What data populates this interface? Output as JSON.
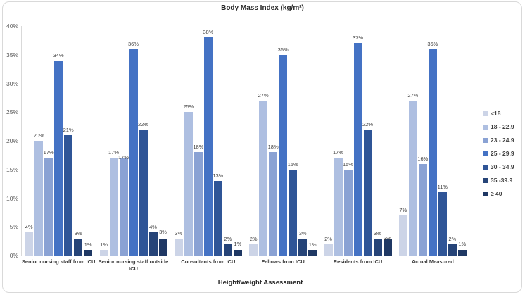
{
  "chart": {
    "title": "Body Mass Index (kg/m²)",
    "x_axis_title": "Height/weight Assessment"
  },
  "chart_data": {
    "type": "bar",
    "title": "Body Mass Index (kg/m²)",
    "xlabel": "Height/weight Assessment",
    "ylabel": "",
    "ylim": [
      0,
      40
    ],
    "y_tick_step": 5,
    "y_ticks": [
      "0%",
      "5%",
      "10%",
      "15%",
      "20%",
      "25%",
      "30%",
      "35%",
      "40%"
    ],
    "grid": false,
    "legend_position": "right",
    "data_labels": "percent",
    "categories": [
      "Senior nursing staff from ICU",
      "Senior nursing staff outside ICU",
      "Consultants from ICU",
      "Fellows from ICU",
      "Residents from ICU",
      "Actual Measured"
    ],
    "series": [
      {
        "name": "<18",
        "color": "#ccd4e7",
        "values": [
          4,
          1,
          3,
          2,
          2,
          7
        ]
      },
      {
        "name": "18 - 22.9",
        "color": "#aebfe1",
        "values": [
          20,
          17,
          25,
          27,
          17,
          27
        ]
      },
      {
        "name": "23 - 24.9",
        "color": "#8aa2d4",
        "values": [
          17,
          17,
          18,
          18,
          15,
          16
        ]
      },
      {
        "name": "25 - 29.9",
        "color": "#4472c4",
        "values": [
          34,
          36,
          38,
          35,
          37,
          36
        ]
      },
      {
        "name": "30 - 34.9",
        "color": "#2f5597",
        "values": [
          21,
          22,
          13,
          15,
          22,
          11
        ]
      },
      {
        "name": "35 -39.9",
        "color": "#264478",
        "values": [
          3,
          4,
          2,
          3,
          3,
          2
        ]
      },
      {
        "name": "≥ 40",
        "color": "#1f3864",
        "values": [
          1,
          3,
          1,
          1,
          3,
          1
        ]
      }
    ]
  },
  "colors": {
    "axis_line": "#d9d9d9",
    "tick_text": "#595959",
    "label_text": "#404040",
    "title_text": "#262626"
  }
}
